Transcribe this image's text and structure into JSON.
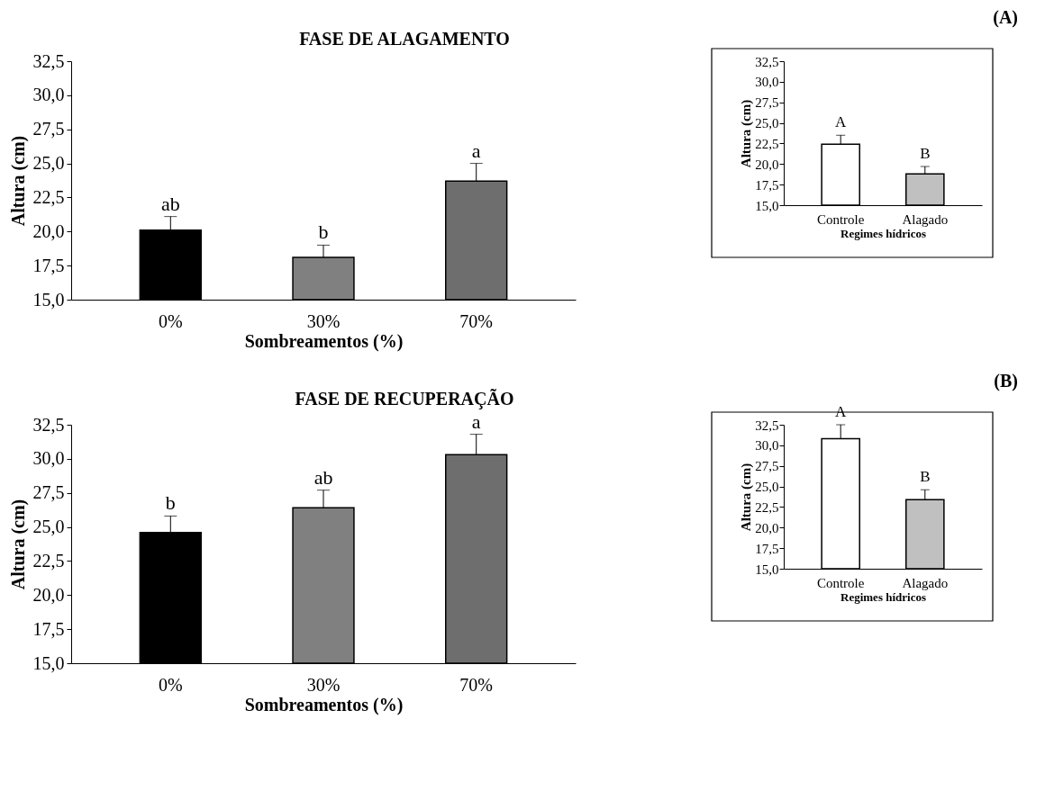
{
  "chart_data": [
    {
      "type": "bar",
      "title": "FASE DE ALAGAMENTO",
      "xlabel": "Sombreamentos (%)",
      "ylabel": "Altura (cm)",
      "categories": [
        "0%",
        "30%",
        "70%"
      ],
      "values": [
        20.1,
        18.1,
        23.7
      ],
      "errors": [
        [
          20.1,
          21.1
        ],
        [
          18.1,
          19.0
        ],
        [
          23.7,
          25.0
        ]
      ],
      "colors": [
        "#000000",
        "#808080",
        "#6e6e6e"
      ],
      "ylim": [
        15,
        32.5
      ],
      "yticks": [
        {
          "value": 15,
          "label": "15,0"
        },
        {
          "value": 17.5,
          "label": "17,5"
        },
        {
          "value": 20,
          "label": "20,0"
        },
        {
          "value": 22.5,
          "label": "22,5"
        },
        {
          "value": 25,
          "label": "25,0"
        },
        {
          "value": 27.5,
          "label": "27,5"
        },
        {
          "value": 30,
          "label": "30,0"
        },
        {
          "value": 32.5,
          "label": "32,5"
        }
      ],
      "annotations": [
        "ab",
        "b",
        "a",
        "(A)"
      ]
    },
    {
      "type": "bar",
      "xlabel": "Regimes hídricos",
      "ylabel": "Altura (cm)",
      "categories": [
        "Controle",
        "Alagado"
      ],
      "values": [
        22.4,
        18.8
      ],
      "errors": [
        [
          22.4,
          23.5
        ],
        [
          18.8,
          19.7
        ]
      ],
      "colors": [
        "#ffffff",
        "#c0c0c0"
      ],
      "ylim": [
        15,
        32.5
      ],
      "yticks": [
        {
          "value": 15,
          "label": "15,0"
        },
        {
          "value": 17.5,
          "label": "17,5"
        },
        {
          "value": 20,
          "label": "20,0"
        },
        {
          "value": 22.5,
          "label": "22,5"
        },
        {
          "value": 25,
          "label": "25,0"
        },
        {
          "value": 27.5,
          "label": "27,5"
        },
        {
          "value": 30,
          "label": "30,0"
        },
        {
          "value": 32.5,
          "label": "32,5"
        }
      ],
      "annotations": [
        "A",
        "B"
      ]
    },
    {
      "type": "bar",
      "title": "FASE DE RECUPERAÇÃO",
      "xlabel": "Sombreamentos (%)",
      "ylabel": "Altura (cm)",
      "categories": [
        "0%",
        "30%",
        "70%"
      ],
      "values": [
        24.6,
        26.4,
        30.3
      ],
      "errors": [
        [
          24.6,
          25.8
        ],
        [
          26.4,
          27.7
        ],
        [
          30.3,
          31.8
        ]
      ],
      "colors": [
        "#000000",
        "#808080",
        "#6e6e6e"
      ],
      "ylim": [
        15,
        32.5
      ],
      "yticks": [
        {
          "value": 15,
          "label": "15,0"
        },
        {
          "value": 17.5,
          "label": "17,5"
        },
        {
          "value": 20,
          "label": "20,0"
        },
        {
          "value": 22.5,
          "label": "22,5"
        },
        {
          "value": 25,
          "label": "25,0"
        },
        {
          "value": 27.5,
          "label": "27,5"
        },
        {
          "value": 30,
          "label": "30,0"
        },
        {
          "value": 32.5,
          "label": "32,5"
        }
      ],
      "annotations": [
        "b",
        "ab",
        "a",
        "(B)"
      ]
    },
    {
      "type": "bar",
      "xlabel": "Regimes hídricos",
      "ylabel": "Altura (cm)",
      "categories": [
        "Controle",
        "Alagado"
      ],
      "values": [
        30.8,
        23.4
      ],
      "errors": [
        [
          30.8,
          32.5
        ],
        [
          23.4,
          24.6
        ]
      ],
      "colors": [
        "#ffffff",
        "#c0c0c0"
      ],
      "ylim": [
        15,
        32.5
      ],
      "yticks": [
        {
          "value": 15,
          "label": "15,0"
        },
        {
          "value": 17.5,
          "label": "17,5"
        },
        {
          "value": 20,
          "label": "20,0"
        },
        {
          "value": 22.5,
          "label": "22,5"
        },
        {
          "value": 25,
          "label": "25,0"
        },
        {
          "value": 27.5,
          "label": "27,5"
        },
        {
          "value": 30,
          "label": "30,0"
        },
        {
          "value": 32.5,
          "label": "32,5"
        }
      ],
      "annotations": [
        "A",
        "B"
      ]
    }
  ]
}
